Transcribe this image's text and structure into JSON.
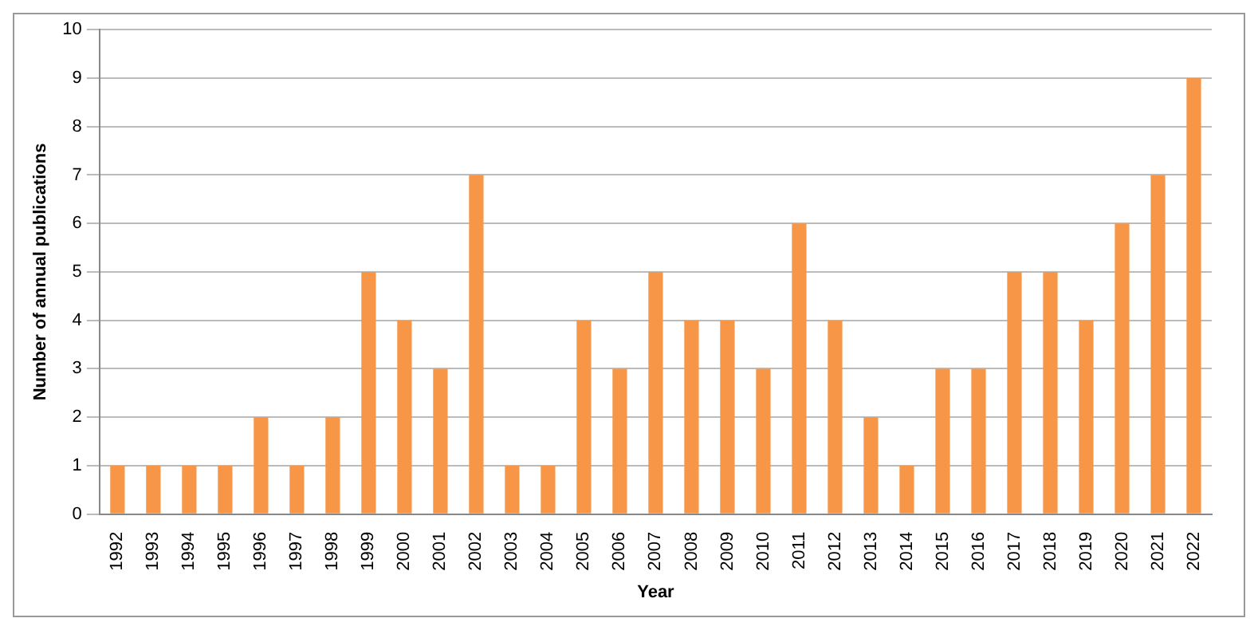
{
  "chart_data": {
    "type": "bar",
    "xlabel": "Year",
    "ylabel": "Number of annual publications",
    "categories": [
      "1992",
      "1993",
      "1994",
      "1995",
      "1996",
      "1997",
      "1998",
      "1999",
      "2000",
      "2001",
      "2002",
      "2003",
      "2004",
      "2005",
      "2006",
      "2007",
      "2008",
      "2009",
      "2010",
      "2011",
      "2012",
      "2013",
      "2014",
      "2015",
      "2016",
      "2017",
      "2018",
      "2019",
      "2020",
      "2021",
      "2022"
    ],
    "values": [
      1,
      1,
      1,
      1,
      2,
      1,
      2,
      5,
      4,
      3,
      7,
      1,
      1,
      4,
      3,
      5,
      4,
      4,
      3,
      6,
      4,
      2,
      1,
      3,
      3,
      5,
      5,
      4,
      6,
      7,
      9
    ],
    "color": "#f79646",
    "ylim": [
      0,
      10
    ],
    "yticks": [
      0,
      1,
      2,
      3,
      4,
      5,
      6,
      7,
      8,
      9,
      10
    ],
    "grid": "y"
  }
}
